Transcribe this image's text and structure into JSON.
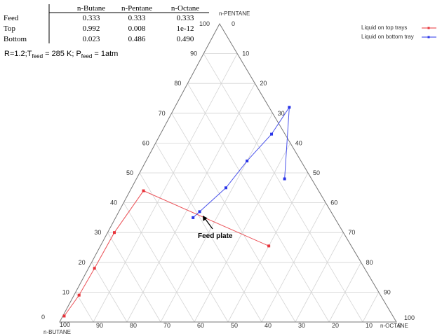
{
  "chart_data": {
    "type": "ternary",
    "composition_table": {
      "columns": [
        "n-Butane",
        "n-Pentane",
        "n-Octane"
      ],
      "rows": [
        {
          "label": "Feed",
          "values": [
            "0.333",
            "0.333",
            "0.333"
          ]
        },
        {
          "label": "Top",
          "values": [
            "0.992",
            "0.008",
            "1e-12"
          ]
        },
        {
          "label": "Bottom",
          "values": [
            "0.023",
            "0.486",
            "0.490"
          ]
        }
      ]
    },
    "conditions": {
      "r": "R=1.2;",
      "t": "T",
      "t_sub": "feed",
      "t_val": " = 285 K; ",
      "p": "P",
      "p_sub": "feed",
      "p_val": " = 1atm"
    },
    "axes": {
      "top": {
        "label": "n-PENTANE"
      },
      "left": {
        "label": "n-BUTANE"
      },
      "right": {
        "label": "n-OCTANE"
      }
    },
    "ticks": {
      "pentane": [
        "0",
        "10",
        "20",
        "30",
        "40",
        "50",
        "60",
        "70",
        "80",
        "90",
        "100"
      ],
      "butane_top": "100",
      "butane_bottom": "100",
      "octane": [
        "0",
        "10",
        "20",
        "30",
        "40",
        "50",
        "60",
        "70",
        "80",
        "90",
        "100"
      ]
    },
    "grid": true,
    "legend": {
      "position": "top-right",
      "entries": [
        {
          "label": "Liquid on top trays",
          "color": "#e8333a"
        },
        {
          "label": "Liquid on bottom tray",
          "color": "#2a35e8"
        }
      ]
    },
    "annotation": {
      "label": "Feed plate"
    },
    "series": [
      {
        "name": "Liquid on top trays",
        "color": "#e8333a",
        "points": [
          {
            "pentane": 2,
            "octane": 0.4
          },
          {
            "pentane": 9,
            "octane": 1.5
          },
          {
            "pentane": 18,
            "octane": 1.8
          },
          {
            "pentane": 30,
            "octane": 2.0
          },
          {
            "pentane": 44,
            "octane": 4.0
          },
          {
            "pentane": 25.5,
            "octane": 50
          }
        ]
      },
      {
        "name": "Liquid on bottom tray",
        "color": "#2a35e8",
        "points": [
          {
            "pentane": 35,
            "octane": 23
          },
          {
            "pentane": 37,
            "octane": 24
          },
          {
            "pentane": 45,
            "octane": 28
          },
          {
            "pentane": 54,
            "octane": 30
          },
          {
            "pentane": 63,
            "octane": 33
          },
          {
            "pentane": 72,
            "octane": 34
          },
          {
            "pentane": 48,
            "octane": 44
          }
        ]
      }
    ]
  }
}
